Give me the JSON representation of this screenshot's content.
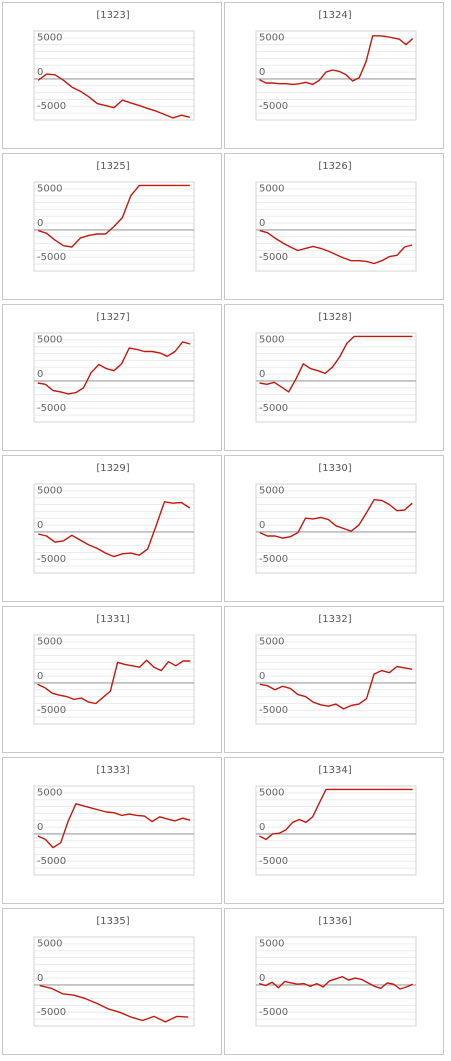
{
  "colors": {
    "line": "#c0190f",
    "zero": "#9e9e9e",
    "grid": "#ececec",
    "frame": "#c8c8c8"
  },
  "chart_data": [
    {
      "type": "line",
      "title": "[1323]",
      "ylim": [
        -6000,
        7000
      ],
      "yticks": [
        5000,
        0,
        -5000
      ],
      "grid": true,
      "values": [
        -200,
        700,
        600,
        -200,
        -1200,
        -1800,
        -2600,
        -3600,
        -3900,
        -4200,
        -3100,
        -3500,
        -3900,
        -4300,
        -4700,
        -5200,
        -5700,
        -5300,
        -5600
      ]
    },
    {
      "type": "line",
      "title": "[1324]",
      "ylim": [
        -6000,
        7000
      ],
      "yticks": [
        5000,
        0,
        -5000
      ],
      "grid": true,
      "values": [
        -100,
        -600,
        -600,
        -700,
        -700,
        -800,
        -700,
        -500,
        -800,
        -200,
        1000,
        1300,
        1100,
        600,
        -300,
        200,
        2500,
        6300,
        6300,
        6200,
        6000,
        5800,
        5000,
        5900
      ]
    },
    {
      "type": "line",
      "title": "[1325]",
      "ylim": [
        -6000,
        7000
      ],
      "yticks": [
        5000,
        0,
        -5000
      ],
      "grid": true,
      "values": [
        -100,
        -500,
        -1500,
        -2300,
        -2500,
        -1200,
        -800,
        -600,
        -600,
        500,
        1800,
        5000,
        6500,
        6500,
        6500,
        6500,
        6500,
        6500,
        6500
      ]
    },
    {
      "type": "line",
      "title": "[1326]",
      "ylim": [
        -6000,
        7000
      ],
      "yticks": [
        5000,
        0,
        -5000
      ],
      "grid": true,
      "values": [
        -100,
        -400,
        -1200,
        -1900,
        -2500,
        -3000,
        -2700,
        -2400,
        -2700,
        -3100,
        -3600,
        -4100,
        -4500,
        -4500,
        -4600,
        -4900,
        -4500,
        -3900,
        -3700,
        -2500,
        -2200
      ]
    },
    {
      "type": "line",
      "title": "[1327]",
      "ylim": [
        -6000,
        7000
      ],
      "yticks": [
        5000,
        0,
        -5000
      ],
      "grid": true,
      "values": [
        -300,
        -500,
        -1400,
        -1600,
        -1900,
        -1700,
        -1000,
        1200,
        2400,
        1800,
        1500,
        2500,
        4800,
        4600,
        4300,
        4300,
        4100,
        3600,
        4300,
        5700,
        5400
      ]
    },
    {
      "type": "line",
      "title": "[1328]",
      "ylim": [
        -6000,
        7000
      ],
      "yticks": [
        5000,
        0,
        -5000
      ],
      "grid": true,
      "values": [
        -300,
        -500,
        -200,
        -900,
        -1600,
        300,
        2500,
        1800,
        1500,
        1100,
        2000,
        3500,
        5500,
        6500,
        6500,
        6500,
        6500,
        6500,
        6500,
        6500,
        6500,
        6500
      ]
    },
    {
      "type": "line",
      "title": "[1329]",
      "ylim": [
        -6000,
        7000
      ],
      "yticks": [
        5000,
        0,
        -5000
      ],
      "grid": true,
      "values": [
        -300,
        -600,
        -1500,
        -1300,
        -500,
        -1200,
        -1900,
        -2400,
        -3100,
        -3600,
        -3200,
        -3100,
        -3400,
        -2500,
        900,
        4400,
        4200,
        4300,
        3500
      ]
    },
    {
      "type": "line",
      "title": "[1330]",
      "ylim": [
        -6000,
        7000
      ],
      "yticks": [
        5000,
        0,
        -5000
      ],
      "grid": true,
      "values": [
        -100,
        -600,
        -600,
        -900,
        -700,
        -100,
        2000,
        1900,
        2100,
        1800,
        900,
        500,
        100,
        1000,
        2800,
        4700,
        4600,
        4000,
        3100,
        3200,
        4200
      ]
    },
    {
      "type": "line",
      "title": "[1331]",
      "ylim": [
        -6000,
        7000
      ],
      "yticks": [
        5000,
        0,
        -5000
      ],
      "grid": true,
      "values": [
        -200,
        -700,
        -1500,
        -1800,
        -2000,
        -2400,
        -2200,
        -2800,
        -3000,
        -2100,
        -1200,
        3000,
        2700,
        2500,
        2300,
        3300,
        2300,
        1800,
        3100,
        2500,
        3200,
        3200
      ]
    },
    {
      "type": "line",
      "title": "[1332]",
      "ylim": [
        -6000,
        7000
      ],
      "yticks": [
        5000,
        0,
        -5000
      ],
      "grid": true,
      "values": [
        -200,
        -400,
        -1000,
        -500,
        -800,
        -1700,
        -2000,
        -2800,
        -3200,
        -3400,
        -3100,
        -3800,
        -3300,
        -3100,
        -2300,
        1300,
        1800,
        1500,
        2400,
        2200,
        2000
      ]
    },
    {
      "type": "line",
      "title": "[1333]",
      "ylim": [
        -6000,
        7000
      ],
      "yticks": [
        5000,
        0,
        -5000
      ],
      "grid": true,
      "values": [
        -300,
        -800,
        -2000,
        -1300,
        1900,
        4400,
        4100,
        3800,
        3500,
        3200,
        3100,
        2700,
        2900,
        2700,
        2600,
        1800,
        2500,
        2200,
        1900,
        2300,
        2000
      ]
    },
    {
      "type": "line",
      "title": "[1334]",
      "ylim": [
        -6000,
        7000
      ],
      "yticks": [
        5000,
        0,
        -5000
      ],
      "grid": true,
      "values": [
        -300,
        -800,
        0,
        100,
        600,
        1700,
        2100,
        1700,
        2500,
        4500,
        6500,
        6500,
        6500,
        6500,
        6500,
        6500,
        6500,
        6500,
        6500,
        6500,
        6500,
        6500,
        6500,
        6500
      ]
    },
    {
      "type": "line",
      "title": "[1335]",
      "ylim": [
        -6000,
        7000
      ],
      "yticks": [
        5000,
        0,
        -5000
      ],
      "grid": true,
      "values": [
        -100,
        -500,
        -1300,
        -1500,
        -2000,
        -2700,
        -3500,
        -4000,
        -4700,
        -5200,
        -4600,
        -5400,
        -4600,
        -4700
      ]
    },
    {
      "type": "line",
      "title": "[1336]",
      "ylim": [
        -6000,
        7000
      ],
      "yticks": [
        5000,
        0,
        -5000
      ],
      "grid": true,
      "values": [
        200,
        -100,
        400,
        -400,
        500,
        300,
        100,
        200,
        -200,
        200,
        -300,
        600,
        900,
        1200,
        700,
        1000,
        800,
        300,
        -200,
        -500,
        300,
        100,
        -600,
        -300,
        100
      ]
    }
  ]
}
